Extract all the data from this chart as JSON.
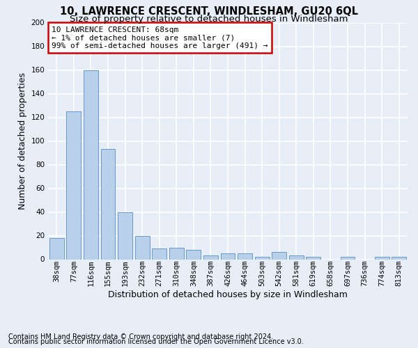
{
  "title": "10, LAWRENCE CRESCENT, WINDLESHAM, GU20 6QL",
  "subtitle": "Size of property relative to detached houses in Windlesham",
  "xlabel": "Distribution of detached houses by size in Windlesham",
  "ylabel": "Number of detached properties",
  "categories": [
    "38sqm",
    "77sqm",
    "116sqm",
    "155sqm",
    "193sqm",
    "232sqm",
    "271sqm",
    "310sqm",
    "348sqm",
    "387sqm",
    "426sqm",
    "464sqm",
    "503sqm",
    "542sqm",
    "581sqm",
    "619sqm",
    "658sqm",
    "697sqm",
    "736sqm",
    "774sqm",
    "813sqm"
  ],
  "values": [
    18,
    125,
    160,
    93,
    40,
    20,
    9,
    10,
    8,
    3,
    5,
    5,
    2,
    6,
    3,
    2,
    0,
    2,
    0,
    2,
    2
  ],
  "bar_color": "#b8d0ea",
  "bar_edge_color": "#6699cc",
  "annotation_text": "10 LAWRENCE CRESCENT: 68sqm\n← 1% of detached houses are smaller (7)\n99% of semi-detached houses are larger (491) →",
  "annotation_box_color": "#ffffff",
  "annotation_box_edge": "#cc0000",
  "ylim": [
    0,
    200
  ],
  "footer1": "Contains HM Land Registry data © Crown copyright and database right 2024.",
  "footer2": "Contains public sector information licensed under the Open Government Licence v3.0.",
  "background_color": "#e8eef8",
  "grid_color": "#ffffff",
  "title_fontsize": 10.5,
  "subtitle_fontsize": 9.5,
  "ylabel_fontsize": 9,
  "xlabel_fontsize": 9,
  "tick_fontsize": 7.5,
  "annotation_fontsize": 8,
  "footer_fontsize": 7
}
